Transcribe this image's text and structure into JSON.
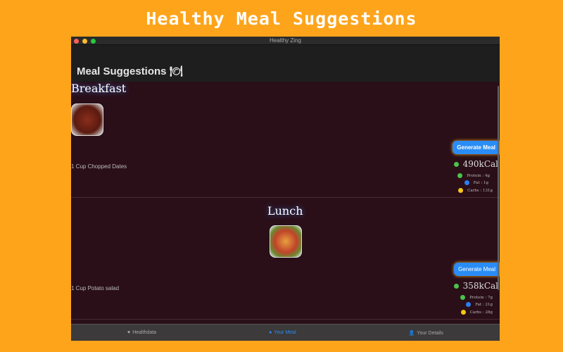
{
  "banner": "Healthy Meal Suggestions",
  "window": {
    "title": "Healthy Zing"
  },
  "header": {
    "title": "Meal Suggestions 🍽"
  },
  "meals": [
    {
      "title": "Breakfast",
      "food": "1 Cup Chopped Dates",
      "button": "Generate Meal",
      "kcal": "490kCal",
      "protein": "Protein : 4g",
      "fat": "Fat : 1g",
      "carbs": "Carbs : 131g"
    },
    {
      "title": "Lunch",
      "food": "1 Cup Potato salad",
      "button": "Generate  Meal",
      "kcal": "358kCal",
      "protein": "Protein : 7g",
      "fat": "Fat : 21g",
      "carbs": "Carbs : 28g"
    }
  ],
  "tabs": [
    {
      "label": "Healthdata",
      "icon": "heart-icon"
    },
    {
      "label": "Your Meal",
      "icon": "meal-icon",
      "active": true
    },
    {
      "label": "Your Details",
      "icon": "person-icon"
    }
  ],
  "colors": {
    "background": "#fea41b",
    "accent": "#2a8cf5",
    "protein": "#4cc34c",
    "fat": "#2a7ef5",
    "carbs": "#f5c518"
  }
}
